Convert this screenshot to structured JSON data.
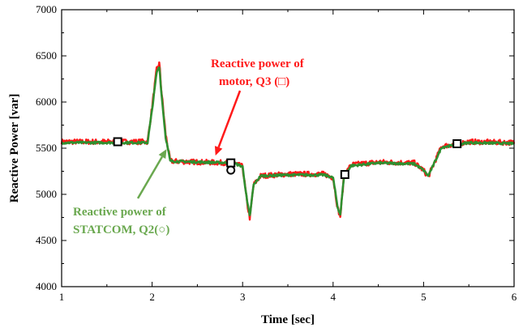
{
  "chart_data": {
    "type": "line",
    "xlabel": "Time [sec]",
    "ylabel": "Reactive Power [var]",
    "xlim": [
      1,
      6
    ],
    "ylim": [
      4000,
      7000
    ],
    "x_ticks": [
      "1",
      "2",
      "3",
      "4",
      "5",
      "6"
    ],
    "y_ticks": [
      "4000",
      "4500",
      "5000",
      "5500",
      "6000",
      "6500",
      "7000"
    ],
    "grid": false,
    "series": [
      {
        "name": "Reactive power of motor, Q3 (□)",
        "color": "#ff1a1a",
        "marker": "square",
        "x": [
          1.0,
          1.5,
          1.95,
          2.0,
          2.05,
          2.08,
          2.1,
          2.15,
          2.2,
          2.5,
          2.9,
          3.0,
          3.05,
          3.08,
          3.12,
          3.2,
          3.5,
          3.9,
          4.0,
          4.05,
          4.08,
          4.12,
          4.2,
          4.5,
          4.9,
          5.0,
          5.05,
          5.1,
          5.2,
          5.5,
          6.0
        ],
        "y": [
          5570,
          5570,
          5570,
          5950,
          6350,
          6420,
          6150,
          5650,
          5360,
          5350,
          5340,
          5300,
          4900,
          4740,
          5100,
          5200,
          5220,
          5220,
          5180,
          4850,
          4760,
          5200,
          5320,
          5350,
          5340,
          5260,
          5190,
          5300,
          5520,
          5570,
          5560
        ],
        "marker_x": [
          1.62,
          2.87,
          4.13,
          5.37
        ]
      },
      {
        "name": "Reactive power of STATCOM, Q2(○)",
        "color": "#2f8f2f",
        "marker": "circle",
        "x": [
          1.0,
          1.5,
          1.95,
          2.0,
          2.05,
          2.08,
          2.1,
          2.15,
          2.2,
          2.5,
          2.9,
          3.0,
          3.05,
          3.08,
          3.12,
          3.2,
          3.5,
          3.9,
          4.0,
          4.05,
          4.08,
          4.12,
          4.2,
          4.5,
          4.9,
          5.0,
          5.05,
          5.1,
          5.2,
          5.5,
          6.0
        ],
        "y": [
          5560,
          5560,
          5560,
          5920,
          6320,
          6390,
          6120,
          5620,
          5360,
          5350,
          5340,
          5300,
          4920,
          4760,
          5100,
          5200,
          5210,
          5210,
          5180,
          4860,
          4780,
          5200,
          5310,
          5340,
          5330,
          5260,
          5200,
          5300,
          5510,
          5560,
          5550
        ],
        "marker_x": [
          2.87
        ]
      }
    ],
    "annotations": [
      {
        "lines": [
          "Reactive power of",
          "motor, Q3 (□)"
        ],
        "color": "#ff1a1a",
        "arrow_to": [
          2.7,
          5420
        ]
      },
      {
        "lines": [
          "Reactive power of",
          "STATCOM, Q2(○)"
        ],
        "color": "#6aa84f",
        "arrow_to": [
          2.16,
          5490
        ]
      }
    ]
  }
}
